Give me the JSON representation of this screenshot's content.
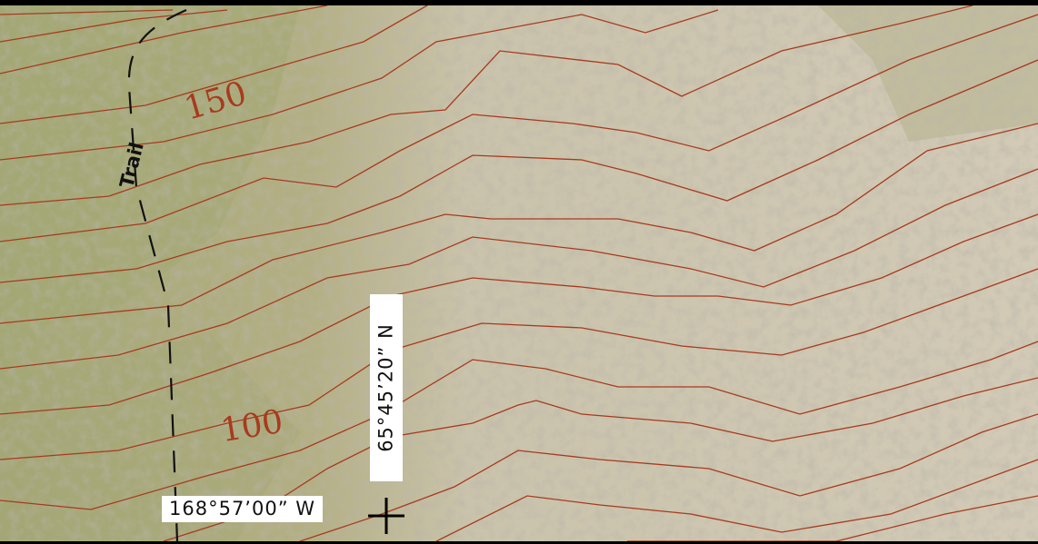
{
  "map": {
    "contour_labels": [
      {
        "value": "150"
      },
      {
        "value": "100"
      }
    ],
    "trail_label": "Trail",
    "graticule": {
      "longitude": "168°57’00” W",
      "latitude": "65°45’20” N"
    },
    "colors": {
      "contour": "#a83a1e",
      "vegetation": "#a8aa78",
      "rock": "#cfc6b2",
      "frame": "#000000"
    },
    "icons": [
      "crosshair-icon"
    ]
  }
}
